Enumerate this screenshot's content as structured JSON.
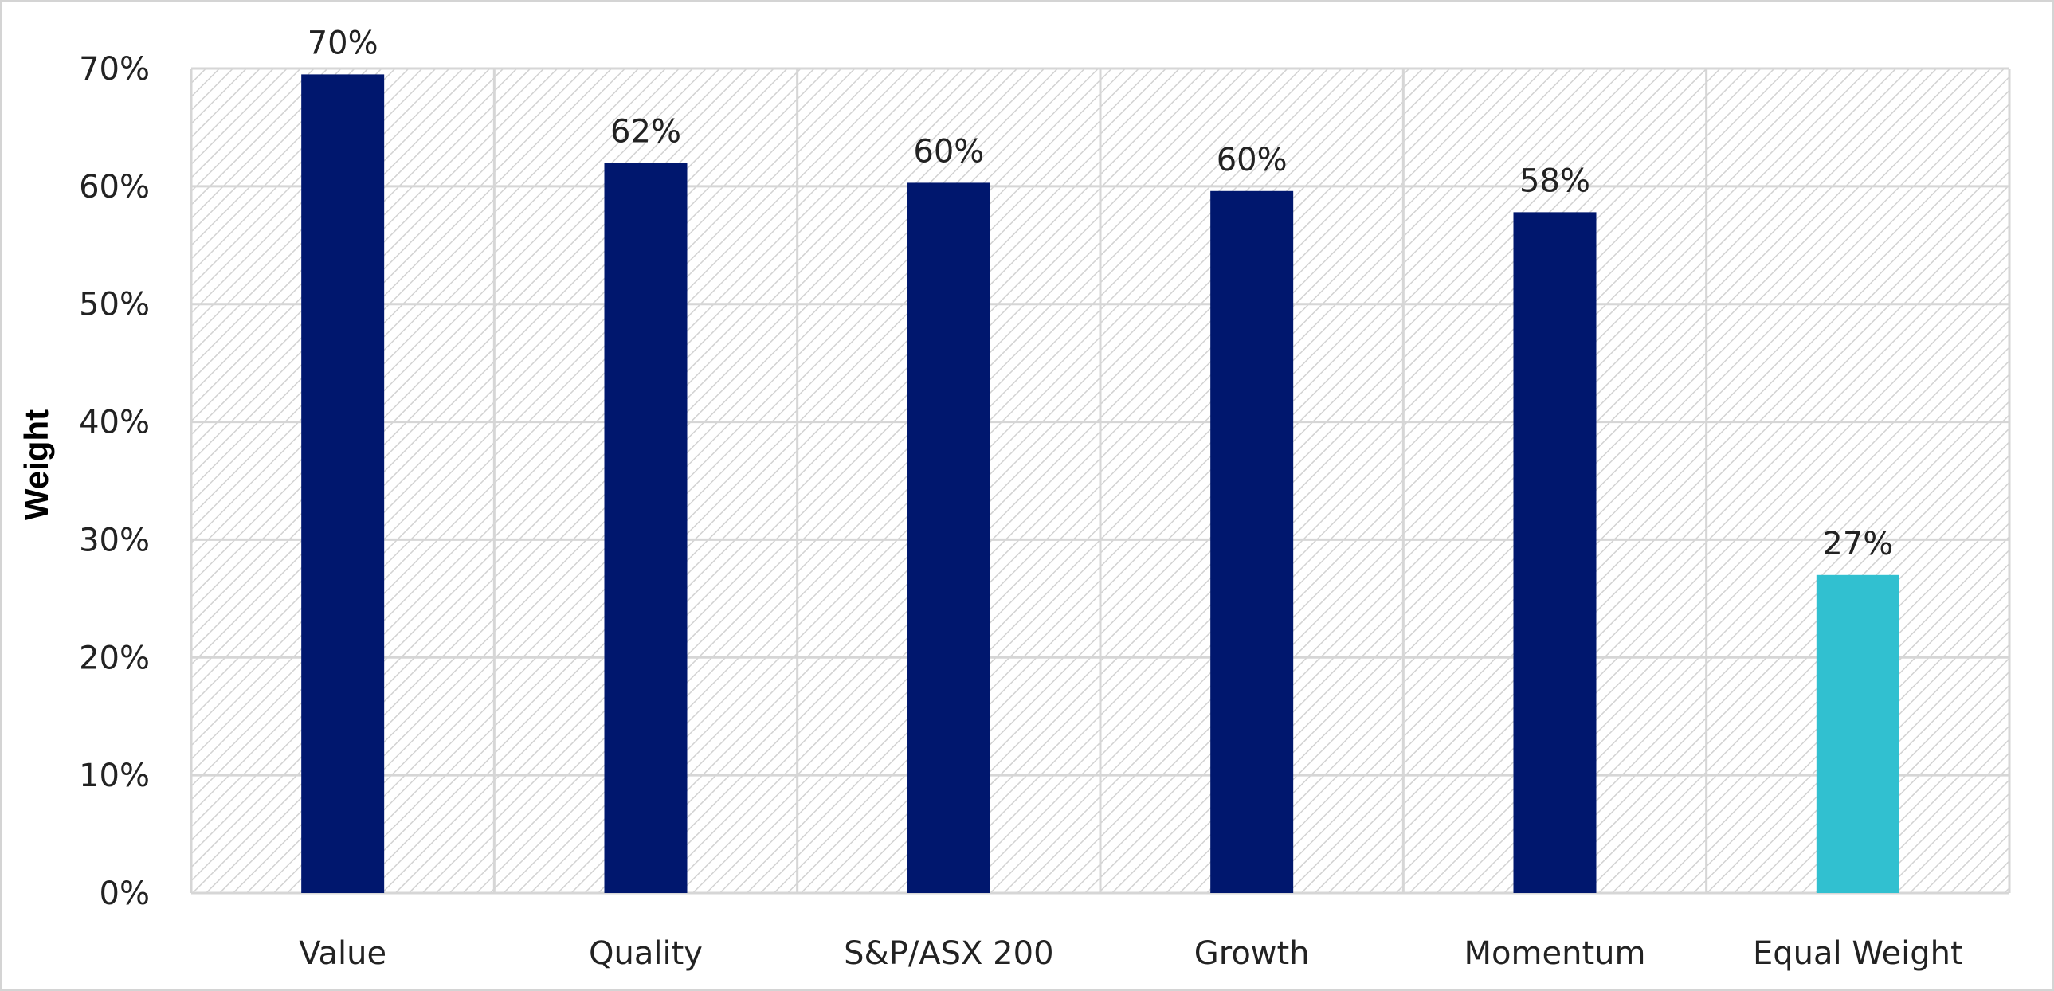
{
  "chart_data": {
    "type": "bar",
    "title": "",
    "xlabel": "",
    "ylabel": "Weight",
    "categories": [
      "Value",
      "Quality",
      "S&P/ASX 200",
      "Growth",
      "Momentum",
      "Equal Weight"
    ],
    "values": [
      69.5,
      62.0,
      60.3,
      59.6,
      57.8,
      27.0
    ],
    "data_labels": [
      "70%",
      "62%",
      "60%",
      "60%",
      "58%",
      "27%"
    ],
    "yticks": [
      0,
      10,
      20,
      30,
      40,
      50,
      60,
      70
    ],
    "ytick_labels": [
      "0%",
      "10%",
      "20%",
      "30%",
      "40%",
      "50%",
      "60%",
      "70%"
    ],
    "ylim": [
      0,
      70
    ],
    "grid": true,
    "background_pattern": "diagonal-hatch",
    "colors": {
      "primary_bar": "#00176e",
      "highlight_bar": "#31c0d0",
      "grid": "#d6d6d6",
      "hatch": "#d2d2d2"
    },
    "highlight_index": 5
  }
}
